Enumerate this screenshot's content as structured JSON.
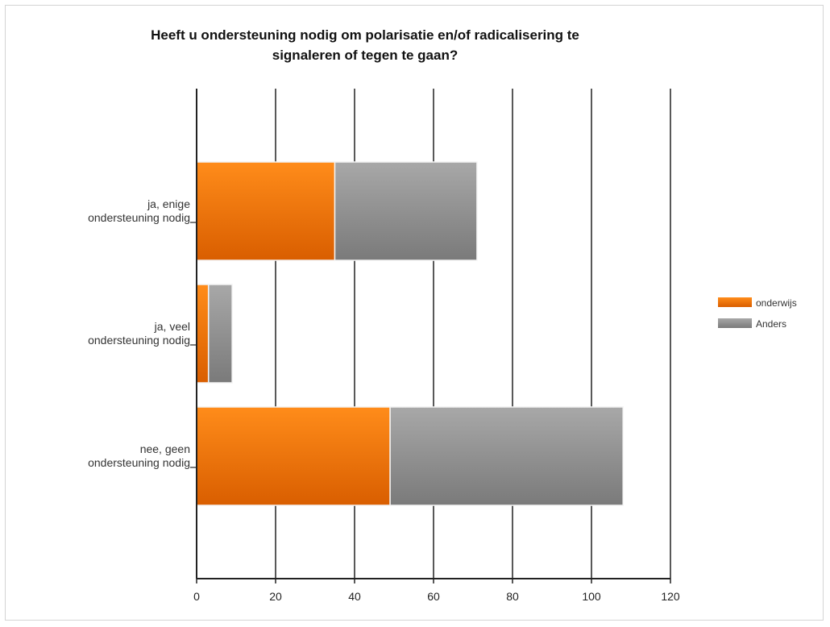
{
  "chart_data": {
    "type": "bar",
    "orientation": "horizontal",
    "stacked": true,
    "title_lines": [
      "Heeft u ondersteuning nodig om polarisatie en/of radicalisering te",
      "signaleren of tegen te gaan?"
    ],
    "categories": [
      [
        "ja, enige",
        "ondersteuning nodig"
      ],
      [
        "ja, veel",
        "ondersteuning nodig"
      ],
      [
        "nee, geen",
        "ondersteuning nodig"
      ]
    ],
    "series": [
      {
        "name": "onderwijs",
        "values": [
          35,
          3,
          49
        ],
        "color": "#f07d12"
      },
      {
        "name": "Anders",
        "values": [
          36,
          6,
          59
        ],
        "color": "#8f8f8f"
      }
    ],
    "xlim": [
      0,
      120
    ],
    "xticks": [
      0,
      20,
      40,
      60,
      80,
      100,
      120
    ],
    "grid": true,
    "legend_position": "right"
  }
}
